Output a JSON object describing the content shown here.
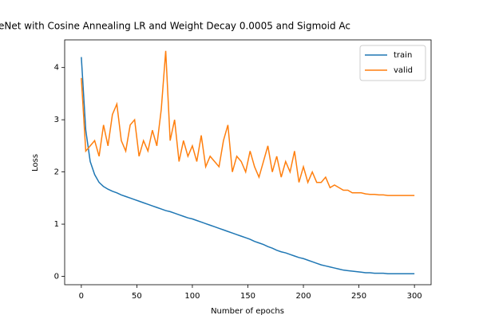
{
  "chart_data": {
    "type": "line",
    "title": "eNet with Cosine Annealing LR and Weight Decay 0.0005 and Sigmoid Ac",
    "x_label": "Number of epochs",
    "y_label": "Loss",
    "x": [
      0,
      4,
      8,
      12,
      16,
      20,
      24,
      28,
      32,
      36,
      40,
      44,
      48,
      52,
      56,
      60,
      64,
      68,
      72,
      76,
      80,
      84,
      88,
      92,
      96,
      100,
      104,
      108,
      112,
      116,
      120,
      124,
      128,
      132,
      136,
      140,
      144,
      148,
      152,
      156,
      160,
      164,
      168,
      172,
      176,
      180,
      184,
      188,
      192,
      196,
      200,
      204,
      208,
      212,
      216,
      220,
      224,
      228,
      232,
      236,
      240,
      244,
      248,
      252,
      256,
      260,
      264,
      268,
      272,
      276,
      280,
      284,
      288,
      292,
      296,
      300
    ],
    "series": [
      {
        "name": "train",
        "color": "#1f77b4",
        "values": [
          4.2,
          2.8,
          2.2,
          1.95,
          1.8,
          1.72,
          1.67,
          1.63,
          1.6,
          1.56,
          1.53,
          1.5,
          1.47,
          1.44,
          1.41,
          1.38,
          1.35,
          1.32,
          1.29,
          1.26,
          1.24,
          1.21,
          1.18,
          1.15,
          1.12,
          1.1,
          1.07,
          1.04,
          1.01,
          0.98,
          0.95,
          0.92,
          0.89,
          0.86,
          0.83,
          0.8,
          0.77,
          0.74,
          0.71,
          0.67,
          0.64,
          0.61,
          0.57,
          0.54,
          0.5,
          0.47,
          0.45,
          0.42,
          0.39,
          0.36,
          0.34,
          0.31,
          0.28,
          0.25,
          0.22,
          0.2,
          0.18,
          0.16,
          0.14,
          0.12,
          0.11,
          0.1,
          0.09,
          0.08,
          0.07,
          0.07,
          0.06,
          0.06,
          0.06,
          0.05,
          0.05,
          0.05,
          0.05,
          0.05,
          0.05,
          0.05
        ]
      },
      {
        "name": "valid",
        "color": "#ff7f0e",
        "values": [
          3.8,
          2.4,
          2.5,
          2.6,
          2.3,
          2.9,
          2.5,
          3.1,
          3.3,
          2.6,
          2.4,
          2.9,
          3.0,
          2.3,
          2.6,
          2.4,
          2.8,
          2.5,
          3.2,
          4.32,
          2.6,
          3.0,
          2.2,
          2.6,
          2.3,
          2.5,
          2.2,
          2.7,
          2.1,
          2.3,
          2.2,
          2.1,
          2.6,
          2.9,
          2.0,
          2.3,
          2.2,
          2.0,
          2.4,
          2.1,
          1.9,
          2.2,
          2.5,
          2.0,
          2.3,
          1.9,
          2.2,
          2.0,
          2.4,
          1.8,
          2.1,
          1.8,
          2.0,
          1.8,
          1.8,
          1.9,
          1.7,
          1.75,
          1.7,
          1.65,
          1.65,
          1.6,
          1.6,
          1.6,
          1.58,
          1.57,
          1.57,
          1.56,
          1.56,
          1.55,
          1.55,
          1.55,
          1.55,
          1.55,
          1.55,
          1.55
        ]
      }
    ],
    "xlim": [
      -15,
      315
    ],
    "ylim": [
      -0.16,
      4.53
    ],
    "xticks": [
      0,
      50,
      100,
      150,
      200,
      250,
      300
    ],
    "yticks": [
      0,
      1,
      2,
      3,
      4
    ],
    "legend": "upper right"
  }
}
